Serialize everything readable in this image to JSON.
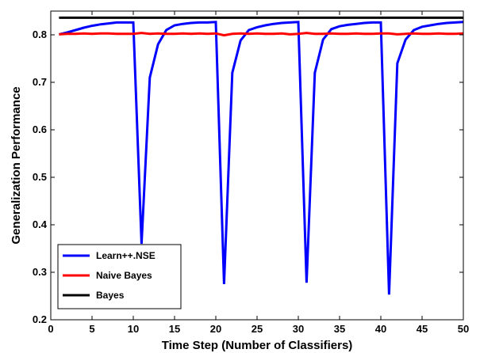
{
  "chart_data": {
    "type": "line",
    "xlabel": "Time Step (Number of Classifiers)",
    "ylabel": "Generalization Performance",
    "xlim": [
      0,
      50
    ],
    "ylim": [
      0.2,
      0.85
    ],
    "xticks": [
      0,
      5,
      10,
      15,
      20,
      25,
      30,
      35,
      40,
      45,
      50
    ],
    "yticks": [
      0.2,
      0.3,
      0.4,
      0.5,
      0.6,
      0.7,
      0.8
    ],
    "xtick_labels": [
      "0",
      "5",
      "10",
      "15",
      "20",
      "25",
      "30",
      "35",
      "40",
      "45",
      "50"
    ],
    "ytick_labels": [
      "0.2",
      "0.3",
      "0.4",
      "0.5",
      "0.6",
      "0.7",
      "0.8"
    ],
    "grid": false,
    "legend_position": "bottom-left",
    "series": [
      {
        "name": "Learn++.NSE",
        "color": "#0000ff",
        "x": [
          1,
          2,
          3,
          4,
          5,
          6,
          7,
          8,
          9,
          10,
          11,
          12,
          13,
          14,
          15,
          16,
          17,
          18,
          19,
          20,
          21,
          22,
          23,
          24,
          25,
          26,
          27,
          28,
          29,
          30,
          31,
          32,
          33,
          34,
          35,
          36,
          37,
          38,
          39,
          40,
          41,
          42,
          43,
          44,
          45,
          46,
          47,
          48,
          49,
          50
        ],
        "y": [
          0.801,
          0.805,
          0.81,
          0.815,
          0.819,
          0.822,
          0.824,
          0.826,
          0.826,
          0.826,
          0.36,
          0.71,
          0.78,
          0.81,
          0.82,
          0.823,
          0.825,
          0.826,
          0.826,
          0.827,
          0.275,
          0.72,
          0.788,
          0.81,
          0.816,
          0.82,
          0.823,
          0.825,
          0.826,
          0.827,
          0.278,
          0.72,
          0.79,
          0.812,
          0.818,
          0.821,
          0.823,
          0.825,
          0.826,
          0.826,
          0.253,
          0.74,
          0.79,
          0.81,
          0.817,
          0.82,
          0.823,
          0.825,
          0.826,
          0.827
        ]
      },
      {
        "name": "Naive Bayes",
        "color": "#ff0000",
        "x": [
          1,
          2,
          3,
          4,
          5,
          6,
          7,
          8,
          9,
          10,
          11,
          12,
          13,
          14,
          15,
          16,
          17,
          18,
          19,
          20,
          21,
          22,
          23,
          24,
          25,
          26,
          27,
          28,
          29,
          30,
          31,
          32,
          33,
          34,
          35,
          36,
          37,
          38,
          39,
          40,
          41,
          42,
          43,
          44,
          45,
          46,
          47,
          48,
          49,
          50
        ],
        "y": [
          0.801,
          0.802,
          0.802,
          0.803,
          0.802,
          0.803,
          0.803,
          0.802,
          0.802,
          0.802,
          0.804,
          0.802,
          0.803,
          0.802,
          0.802,
          0.803,
          0.802,
          0.803,
          0.802,
          0.803,
          0.799,
          0.802,
          0.803,
          0.802,
          0.803,
          0.802,
          0.802,
          0.803,
          0.801,
          0.802,
          0.804,
          0.802,
          0.802,
          0.803,
          0.802,
          0.802,
          0.803,
          0.802,
          0.802,
          0.803,
          0.803,
          0.801,
          0.802,
          0.803,
          0.802,
          0.802,
          0.803,
          0.802,
          0.802,
          0.803
        ]
      },
      {
        "name": "Bayes",
        "color": "#000000",
        "x": [
          1,
          50
        ],
        "y": [
          0.836,
          0.836
        ]
      }
    ]
  }
}
